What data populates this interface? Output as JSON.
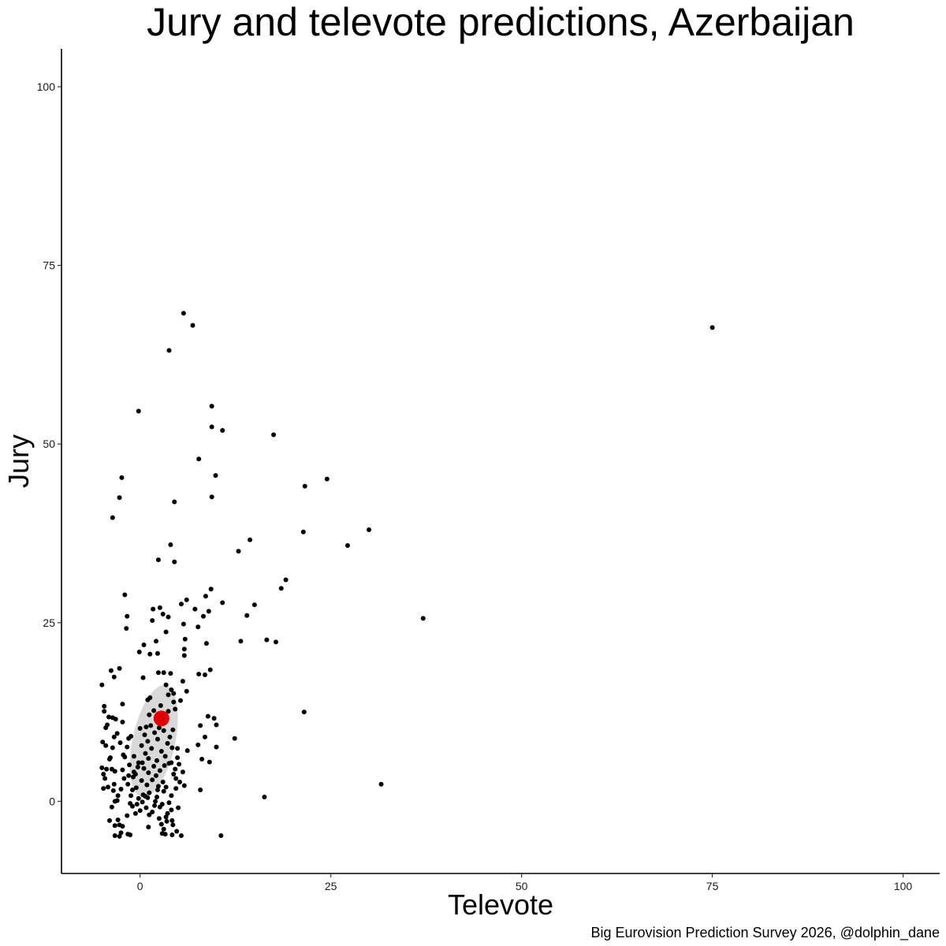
{
  "chart_data": {
    "type": "scatter",
    "title": "Jury and televote predictions, Azerbaijan",
    "caption": "Big Eurovision Prediction Survey 2026, @dolphin_dane",
    "xlabel": "Televote",
    "ylabel": "Jury",
    "xlim": [
      -10.3,
      104.8
    ],
    "ylim": [
      -10.1,
      105.3
    ],
    "xticks": [
      0,
      25,
      50,
      75,
      100
    ],
    "yticks": [
      0,
      25,
      50,
      75,
      100
    ],
    "grid": false,
    "colors": {
      "points": "#000000",
      "highlight": "#e00000",
      "density": "#d9d9d9"
    },
    "highlight": {
      "x": 2.8,
      "y": 11.6
    },
    "density_region": {
      "center_x": 1.8,
      "center_y": 8.4,
      "semi_axis_x": 2.8,
      "semi_axis_y": 8.0,
      "tilt_deg": 12
    },
    "points": [
      [
        5.7,
        68.3
      ],
      [
        6.9,
        66.6
      ],
      [
        3.8,
        63.1
      ],
      [
        75.0,
        66.3
      ],
      [
        -0.2,
        54.6
      ],
      [
        9.4,
        55.3
      ],
      [
        9.4,
        52.4
      ],
      [
        10.8,
        51.9
      ],
      [
        17.5,
        51.3
      ],
      [
        7.7,
        47.9
      ],
      [
        9.9,
        45.6
      ],
      [
        -2.4,
        45.3
      ],
      [
        24.5,
        45.1
      ],
      [
        21.6,
        44.1
      ],
      [
        -2.7,
        42.5
      ],
      [
        9.4,
        42.6
      ],
      [
        4.5,
        41.9
      ],
      [
        -3.6,
        39.7
      ],
      [
        30.0,
        38.0
      ],
      [
        21.4,
        37.7
      ],
      [
        14.4,
        36.6
      ],
      [
        27.2,
        35.8
      ],
      [
        4.0,
        35.9
      ],
      [
        12.9,
        35.0
      ],
      [
        2.4,
        33.8
      ],
      [
        4.5,
        33.5
      ],
      [
        19.1,
        31.0
      ],
      [
        18.5,
        29.8
      ],
      [
        9.3,
        29.7
      ],
      [
        -2.0,
        28.9
      ],
      [
        8.6,
        28.7
      ],
      [
        6.1,
        28.2
      ],
      [
        15.0,
        27.5
      ],
      [
        10.8,
        27.8
      ],
      [
        5.4,
        27.6
      ],
      [
        2.6,
        27.1
      ],
      [
        7.2,
        26.9
      ],
      [
        1.7,
        26.9
      ],
      [
        9.0,
        26.6
      ],
      [
        3.0,
        26.2
      ],
      [
        -1.7,
        25.9
      ],
      [
        3.7,
        25.8
      ],
      [
        14.0,
        26.0
      ],
      [
        37.1,
        25.6
      ],
      [
        1.6,
        25.3
      ],
      [
        8.3,
        25.9
      ],
      [
        5.7,
        24.8
      ],
      [
        -1.8,
        24.2
      ],
      [
        7.6,
        24.4
      ],
      [
        3.4,
        23.7
      ],
      [
        5.9,
        22.7
      ],
      [
        13.2,
        22.4
      ],
      [
        16.6,
        22.6
      ],
      [
        17.8,
        22.3
      ],
      [
        8.7,
        22.1
      ],
      [
        0.5,
        21.9
      ],
      [
        2.1,
        22.4
      ],
      [
        5.8,
        21.3
      ],
      [
        1.3,
        20.6
      ],
      [
        2.3,
        20.7
      ],
      [
        5.8,
        20.4
      ],
      [
        -0.1,
        20.9
      ],
      [
        9.2,
        18.4
      ],
      [
        -2.7,
        18.6
      ],
      [
        -3.8,
        18.3
      ],
      [
        -3.4,
        17.4
      ],
      [
        2.4,
        18.0
      ],
      [
        7.7,
        17.8
      ],
      [
        8.5,
        17.7
      ],
      [
        3.1,
        18.0
      ],
      [
        4.0,
        17.9
      ],
      [
        0.4,
        17.3
      ],
      [
        5.6,
        16.8
      ],
      [
        -5.0,
        16.3
      ],
      [
        3.4,
        16.3
      ],
      [
        4.1,
        15.6
      ],
      [
        6.1,
        15.4
      ],
      [
        3.7,
        14.9
      ],
      [
        1.3,
        14.5
      ],
      [
        5.3,
        14.1
      ],
      [
        4.4,
        13.9
      ],
      [
        -2.3,
        13.6
      ],
      [
        -4.7,
        13.3
      ],
      [
        -4.7,
        12.6
      ],
      [
        21.5,
        12.5
      ],
      [
        1.8,
        12.7
      ],
      [
        3.7,
        12.6
      ],
      [
        8.9,
        11.9
      ],
      [
        -3.2,
        11.5
      ],
      [
        -3.6,
        11.7
      ],
      [
        -4.1,
        11.8
      ],
      [
        -2.3,
        11.1
      ],
      [
        9.7,
        11.6
      ],
      [
        10.0,
        10.7
      ],
      [
        -4.3,
        10.7
      ],
      [
        7.9,
        10.6
      ],
      [
        0.0,
        10.2
      ],
      [
        -4.5,
        10.3
      ],
      [
        -3.0,
        9.5
      ],
      [
        0.8,
        10.4
      ],
      [
        2.5,
        10.3
      ],
      [
        4.3,
        10.0
      ],
      [
        -1.2,
        9.1
      ],
      [
        -1.5,
        8.8
      ],
      [
        -3.4,
        9.0
      ],
      [
        8.5,
        9.0
      ],
      [
        12.4,
        8.8
      ],
      [
        -4.9,
        8.3
      ],
      [
        -4.5,
        7.8
      ],
      [
        -2.6,
        8.2
      ],
      [
        -1.7,
        7.6
      ],
      [
        10.0,
        7.6
      ],
      [
        7.6,
        7.9
      ],
      [
        -3.6,
        7.5
      ],
      [
        4.2,
        7.5
      ],
      [
        4.9,
        7.4
      ],
      [
        6.2,
        7.1
      ],
      [
        -0.8,
        6.3
      ],
      [
        -2.2,
        6.5
      ],
      [
        -2.0,
        6.2
      ],
      [
        -3.9,
        6.1
      ],
      [
        -4.0,
        5.9
      ],
      [
        8.1,
        5.9
      ],
      [
        9.1,
        5.5
      ],
      [
        3.8,
        5.3
      ],
      [
        4.1,
        5.4
      ],
      [
        -0.2,
        5.4
      ],
      [
        -5.0,
        4.7
      ],
      [
        -4.4,
        4.5
      ],
      [
        -3.7,
        4.5
      ],
      [
        -2.3,
        4.4
      ],
      [
        -3.3,
        4.2
      ],
      [
        -4.8,
        3.8
      ],
      [
        -1.5,
        3.6
      ],
      [
        -2.1,
        3.2
      ],
      [
        -0.9,
        3.4
      ],
      [
        -4.6,
        3.2
      ],
      [
        5.6,
        4.1
      ],
      [
        4.7,
        3.2
      ],
      [
        2.1,
        3.6
      ],
      [
        1.6,
        3.0
      ],
      [
        -1.6,
        2.4
      ],
      [
        -3.4,
        2.4
      ],
      [
        -4.2,
        2.0
      ],
      [
        -4.8,
        1.8
      ],
      [
        -3.5,
        1.5
      ],
      [
        -2.5,
        1.7
      ],
      [
        -1.0,
        1.6
      ],
      [
        5.8,
        2.2
      ],
      [
        31.6,
        2.4
      ],
      [
        7.9,
        1.6
      ],
      [
        2.3,
        1.6
      ],
      [
        3.1,
        1.4
      ],
      [
        -2.9,
        0.8
      ],
      [
        -1.2,
        0.8
      ],
      [
        0.7,
        0.7
      ],
      [
        16.3,
        0.6
      ],
      [
        -3.0,
        0.1
      ],
      [
        -3.3,
        0.0
      ],
      [
        -1.3,
        -0.3
      ],
      [
        2.0,
        0.0
      ],
      [
        2.9,
        -0.4
      ],
      [
        -3.7,
        -0.8
      ],
      [
        -1.0,
        -0.7
      ],
      [
        0.0,
        -1.3
      ],
      [
        4.1,
        -1.2
      ],
      [
        1.6,
        -1.5
      ],
      [
        -0.6,
        -1.7
      ],
      [
        3.6,
        -1.7
      ],
      [
        -1.7,
        -2.0
      ],
      [
        1.2,
        -1.9
      ],
      [
        2.5,
        -2.4
      ],
      [
        -4.0,
        -2.7
      ],
      [
        -2.9,
        -2.6
      ],
      [
        -3.3,
        -3.4
      ],
      [
        -2.7,
        -3.3
      ],
      [
        -2.3,
        -3.5
      ],
      [
        3.4,
        -2.2
      ],
      [
        3.5,
        -2.8
      ],
      [
        4.2,
        -2.7
      ],
      [
        4.3,
        -3.3
      ],
      [
        2.8,
        -3.2
      ],
      [
        1.1,
        -3.6
      ],
      [
        3.1,
        -3.9
      ],
      [
        4.8,
        -4.2
      ],
      [
        2.9,
        -4.5
      ],
      [
        3.3,
        -4.6
      ],
      [
        4.2,
        -4.7
      ],
      [
        5.4,
        -4.8
      ],
      [
        10.6,
        -4.8
      ],
      [
        -1.3,
        -4.7
      ],
      [
        -1.6,
        -4.6
      ],
      [
        -2.7,
        -4.9
      ],
      [
        -3.3,
        -4.8
      ],
      [
        -2.5,
        -4.4
      ],
      [
        0.3,
        -0.1
      ],
      [
        1.0,
        0.5
      ],
      [
        0.4,
        0.9
      ],
      [
        -0.5,
        1.9
      ],
      [
        0.9,
        2.3
      ],
      [
        1.2,
        1.2
      ],
      [
        -0.2,
        0.4
      ],
      [
        2.4,
        2.1
      ],
      [
        3.0,
        2.7
      ],
      [
        0.2,
        2.9
      ],
      [
        -0.6,
        3.8
      ],
      [
        1.1,
        4.0
      ],
      [
        2.6,
        4.3
      ],
      [
        0.5,
        4.6
      ],
      [
        -0.3,
        4.8
      ],
      [
        1.8,
        4.9
      ],
      [
        3.2,
        5.0
      ],
      [
        0.3,
        5.4
      ],
      [
        2.2,
        5.7
      ],
      [
        1.1,
        6.0
      ],
      [
        3.3,
        6.3
      ],
      [
        0.7,
        6.7
      ],
      [
        2.8,
        7.0
      ],
      [
        1.5,
        7.4
      ],
      [
        0.2,
        7.8
      ],
      [
        3.6,
        8.1
      ],
      [
        1.0,
        8.4
      ],
      [
        2.3,
        8.7
      ],
      [
        3.9,
        9.0
      ],
      [
        0.6,
        9.3
      ],
      [
        1.9,
        9.6
      ],
      [
        3.1,
        9.9
      ],
      [
        1.4,
        10.6
      ],
      [
        2.9,
        11.0
      ],
      [
        3.5,
        11.8
      ],
      [
        1.2,
        12.1
      ],
      [
        4.6,
        12.9
      ],
      [
        2.7,
        13.4
      ],
      [
        1.0,
        14.2
      ],
      [
        4.4,
        15.1
      ],
      [
        -1.4,
        5.1
      ],
      [
        -0.8,
        4.1
      ],
      [
        4.9,
        6.1
      ],
      [
        5.1,
        5.2
      ],
      [
        4.6,
        4.5
      ],
      [
        5.2,
        2.7
      ],
      [
        4.1,
        0.8
      ],
      [
        3.8,
        -0.2
      ],
      [
        5.0,
        -0.9
      ],
      [
        4.7,
        1.8
      ],
      [
        3.4,
        2.0
      ],
      [
        4.4,
        3.8
      ],
      [
        0.8,
        -0.9
      ],
      [
        -0.4,
        -0.4
      ],
      [
        1.9,
        -0.6
      ],
      [
        2.2,
        0.6
      ],
      [
        2.6,
        -0.8
      ]
    ]
  }
}
